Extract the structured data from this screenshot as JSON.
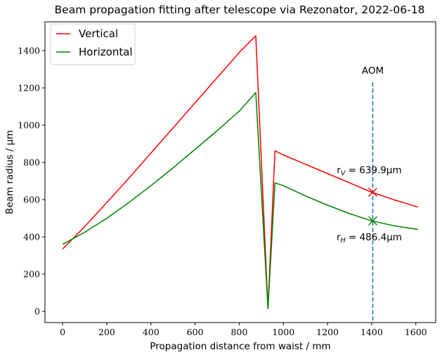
{
  "chart_data": {
    "type": "line",
    "title": "Beam propagation fitting after telescope via Rezonator, 2022-06-18",
    "xlabel": "Propagation distance from waist / mm",
    "ylabel": "Beam radius / μm",
    "xlim": [
      -80,
      1690
    ],
    "ylim": [
      -60,
      1555
    ],
    "xticks": [
      0,
      200,
      400,
      600,
      800,
      1000,
      1200,
      1400,
      1600
    ],
    "yticks": [
      0,
      200,
      400,
      600,
      800,
      1000,
      1200,
      1400
    ],
    "grid": false,
    "legend_position": "top-left",
    "series": [
      {
        "name": "Vertical",
        "color": "#ff0000",
        "x": [
          0,
          100,
          200,
          300,
          400,
          500,
          600,
          700,
          800,
          875,
          930,
          962,
          1000,
          1100,
          1200,
          1300,
          1400,
          1500,
          1610
        ],
        "y": [
          335,
          455,
          585,
          715,
          850,
          985,
          1120,
          1255,
          1390,
          1480,
          15,
          862,
          840,
          790,
          740,
          690,
          640,
          600,
          560
        ]
      },
      {
        "name": "Horizontal",
        "color": "#008000",
        "x": [
          0,
          100,
          200,
          300,
          400,
          500,
          600,
          700,
          800,
          875,
          930,
          962,
          1000,
          1100,
          1200,
          1300,
          1400,
          1500,
          1610
        ],
        "y": [
          360,
          425,
          500,
          585,
          675,
          770,
          870,
          970,
          1075,
          1175,
          15,
          690,
          675,
          620,
          570,
          525,
          486,
          460,
          440
        ]
      }
    ],
    "vline": {
      "x": 1405,
      "y_top": 1230,
      "label": "AOM",
      "color": "#1f77b4"
    },
    "markers": [
      {
        "x": 1405,
        "y": 639.9,
        "color": "#ff0000",
        "label": "r_V = 639.9μm",
        "label_sub": "V"
      },
      {
        "x": 1405,
        "y": 486.4,
        "color": "#008000",
        "label": "r_H = 486.4μm",
        "label_sub": "H"
      }
    ]
  },
  "labels": {
    "aom": "AOM",
    "rv_prefix": "r",
    "rv_sub": "V",
    "rv_value": " = 639.9μm",
    "rh_prefix": "r",
    "rh_sub": "H",
    "rh_value": " = 486.4μm"
  }
}
